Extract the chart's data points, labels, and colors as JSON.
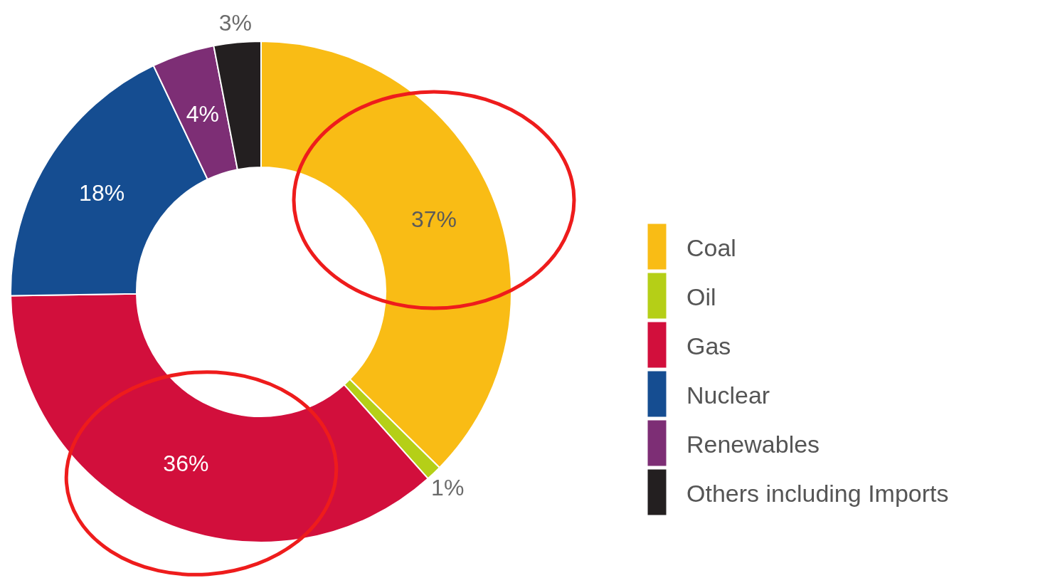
{
  "chart_data": {
    "type": "donut",
    "categories": [
      "Coal",
      "Oil",
      "Gas",
      "Nuclear",
      "Renewables",
      "Others including Imports"
    ],
    "values": [
      37,
      1,
      36,
      18,
      4,
      3
    ],
    "colors": [
      "#f9bc15",
      "#b5cf17",
      "#d20f3c",
      "#154d91",
      "#7d2e75",
      "#231f20"
    ],
    "value_labels": [
      "37%",
      "1%",
      "36%",
      "18%",
      "4%",
      "3%"
    ],
    "legend": "right"
  }
}
